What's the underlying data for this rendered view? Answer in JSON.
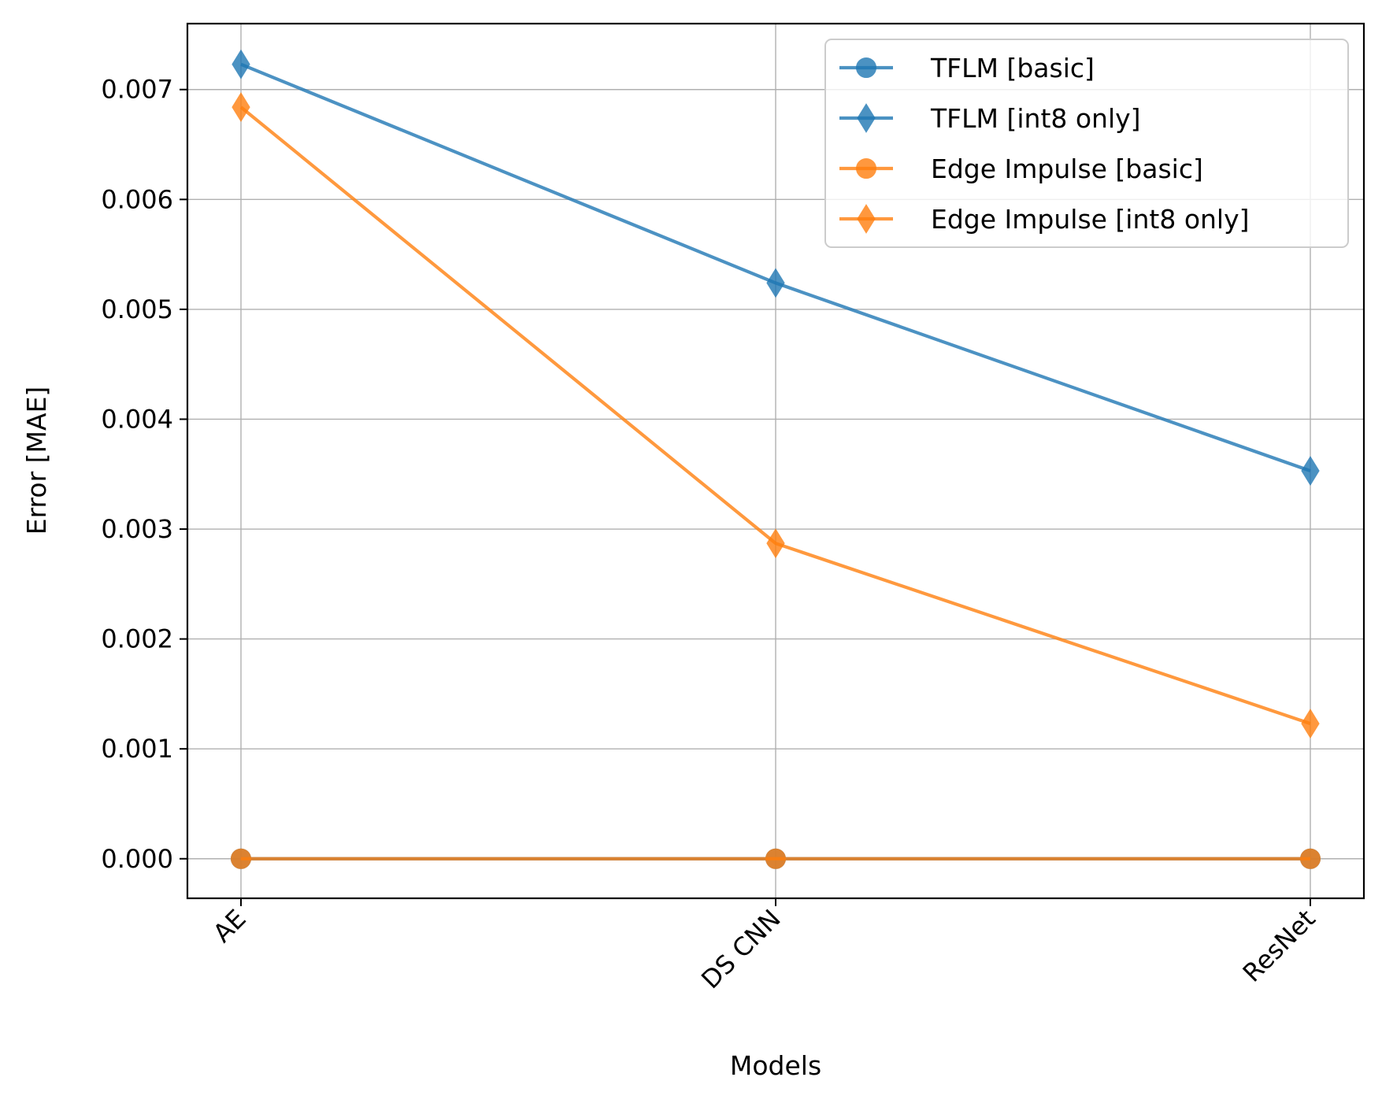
{
  "chart_data": {
    "type": "line",
    "title": "",
    "xlabel": "Models",
    "ylabel": "Error [MAE]",
    "categories": [
      "AE",
      "DS CNN",
      "ResNet"
    ],
    "ylim": [
      -0.00036,
      0.0076
    ],
    "yticks": [
      0.0,
      0.001,
      0.002,
      0.003,
      0.004,
      0.005,
      0.006,
      0.007
    ],
    "ytick_labels": [
      "0.000",
      "0.001",
      "0.002",
      "0.003",
      "0.004",
      "0.005",
      "0.006",
      "0.007"
    ],
    "grid": true,
    "legend_position": "upper-right",
    "series": [
      {
        "name": "TFLM [basic]",
        "marker": "circle",
        "color": "#1f77b4",
        "values": [
          0.0,
          0.0,
          0.0
        ]
      },
      {
        "name": "TFLM [int8 only]",
        "marker": "diamond",
        "color": "#1f77b4",
        "values": [
          0.00723,
          0.00524,
          0.00353
        ]
      },
      {
        "name": "Edge Impulse [basic]",
        "marker": "circle",
        "color": "#ff7f0e",
        "values": [
          0.0,
          0.0,
          0.0
        ]
      },
      {
        "name": "Edge Impulse [int8 only]",
        "marker": "diamond",
        "color": "#ff7f0e",
        "values": [
          0.00684,
          0.00287,
          0.00123
        ]
      }
    ]
  }
}
